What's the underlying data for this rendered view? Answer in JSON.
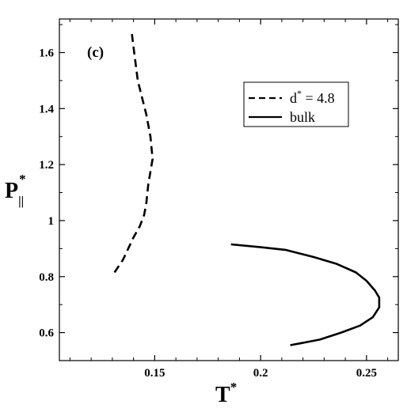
{
  "chart_data": {
    "type": "line",
    "panel_label": "(c)",
    "xlim": [
      0.105,
      0.265
    ],
    "ylim": [
      0.5,
      1.72
    ],
    "x_ticks": [
      0.15,
      0.2,
      0.25
    ],
    "x_tick_labels": [
      "0.15",
      "0.2",
      "0.25"
    ],
    "y_ticks": [
      0.6,
      0.8,
      1.0,
      1.2,
      1.4,
      1.6
    ],
    "y_tick_labels": [
      "0.6",
      "0.8",
      "1",
      "1.2",
      "1.4",
      "1.6"
    ],
    "xlabel": {
      "main": "T",
      "sup": "*"
    },
    "ylabel": {
      "main": "P",
      "sub": "||",
      "sup": "*"
    },
    "legend_position": "upper-right",
    "series": [
      {
        "legend_main": "d",
        "legend_sup": "*",
        "legend_rest": " = 4.8",
        "style": "dashed",
        "color": "#000000",
        "x": [
          0.131,
          0.135,
          0.14,
          0.143,
          0.145,
          0.146,
          0.147,
          0.149,
          0.148,
          0.146,
          0.144,
          0.142,
          0.141,
          0.14,
          0.139
        ],
        "y": [
          0.815,
          0.86,
          0.94,
          0.98,
          1.02,
          1.06,
          1.13,
          1.22,
          1.3,
          1.38,
          1.44,
          1.5,
          1.56,
          1.62,
          1.68
        ]
      },
      {
        "legend_main": "bulk",
        "style": "solid",
        "color": "#000000",
        "x": [
          0.186,
          0.2,
          0.212,
          0.225,
          0.236,
          0.245,
          0.25,
          0.254,
          0.256,
          0.256,
          0.253,
          0.247,
          0.238,
          0.228,
          0.221,
          0.214
        ],
        "y": [
          0.915,
          0.905,
          0.895,
          0.87,
          0.845,
          0.815,
          0.785,
          0.75,
          0.725,
          0.69,
          0.655,
          0.625,
          0.6,
          0.575,
          0.565,
          0.555
        ]
      }
    ]
  }
}
